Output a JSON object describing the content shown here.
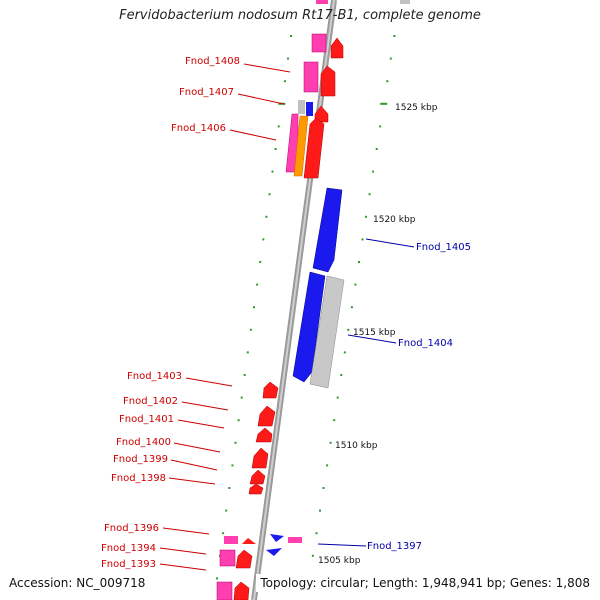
{
  "title": "Fervidobacterium nodosum Rt17-B1, complete genome",
  "footer": {
    "accession": "Accession: NC_009718",
    "summary": "Topology: circular; Length: 1,948,941 bp; Genes: 1,808"
  },
  "colors": {
    "backbone": "#9a9a9a",
    "forward_gene": "#ff1a1a",
    "reverse_gene": "#1a1aee",
    "pseudo_gene": "#c0c0c0",
    "rna_gene": "#ff3fb0",
    "tick": "#2e9a2e",
    "forward_label": "#cc0000",
    "reverse_label": "#0000aa"
  },
  "scale_labels": [
    "1525 kbp",
    "1520 kbp",
    "1515 kbp",
    "1510 kbp",
    "1505 kbp"
  ],
  "forward_labels": [
    "Fnod_1408",
    "Fnod_1407",
    "Fnod_1406",
    "Fnod_1403",
    "Fnod_1402",
    "Fnod_1401",
    "Fnod_1400",
    "Fnod_1399",
    "Fnod_1398",
    "Fnod_1396",
    "Fnod_1394",
    "Fnod_1393"
  ],
  "reverse_labels": [
    "Fnod_1405",
    "Fnod_1404",
    "Fnod_1397"
  ]
}
